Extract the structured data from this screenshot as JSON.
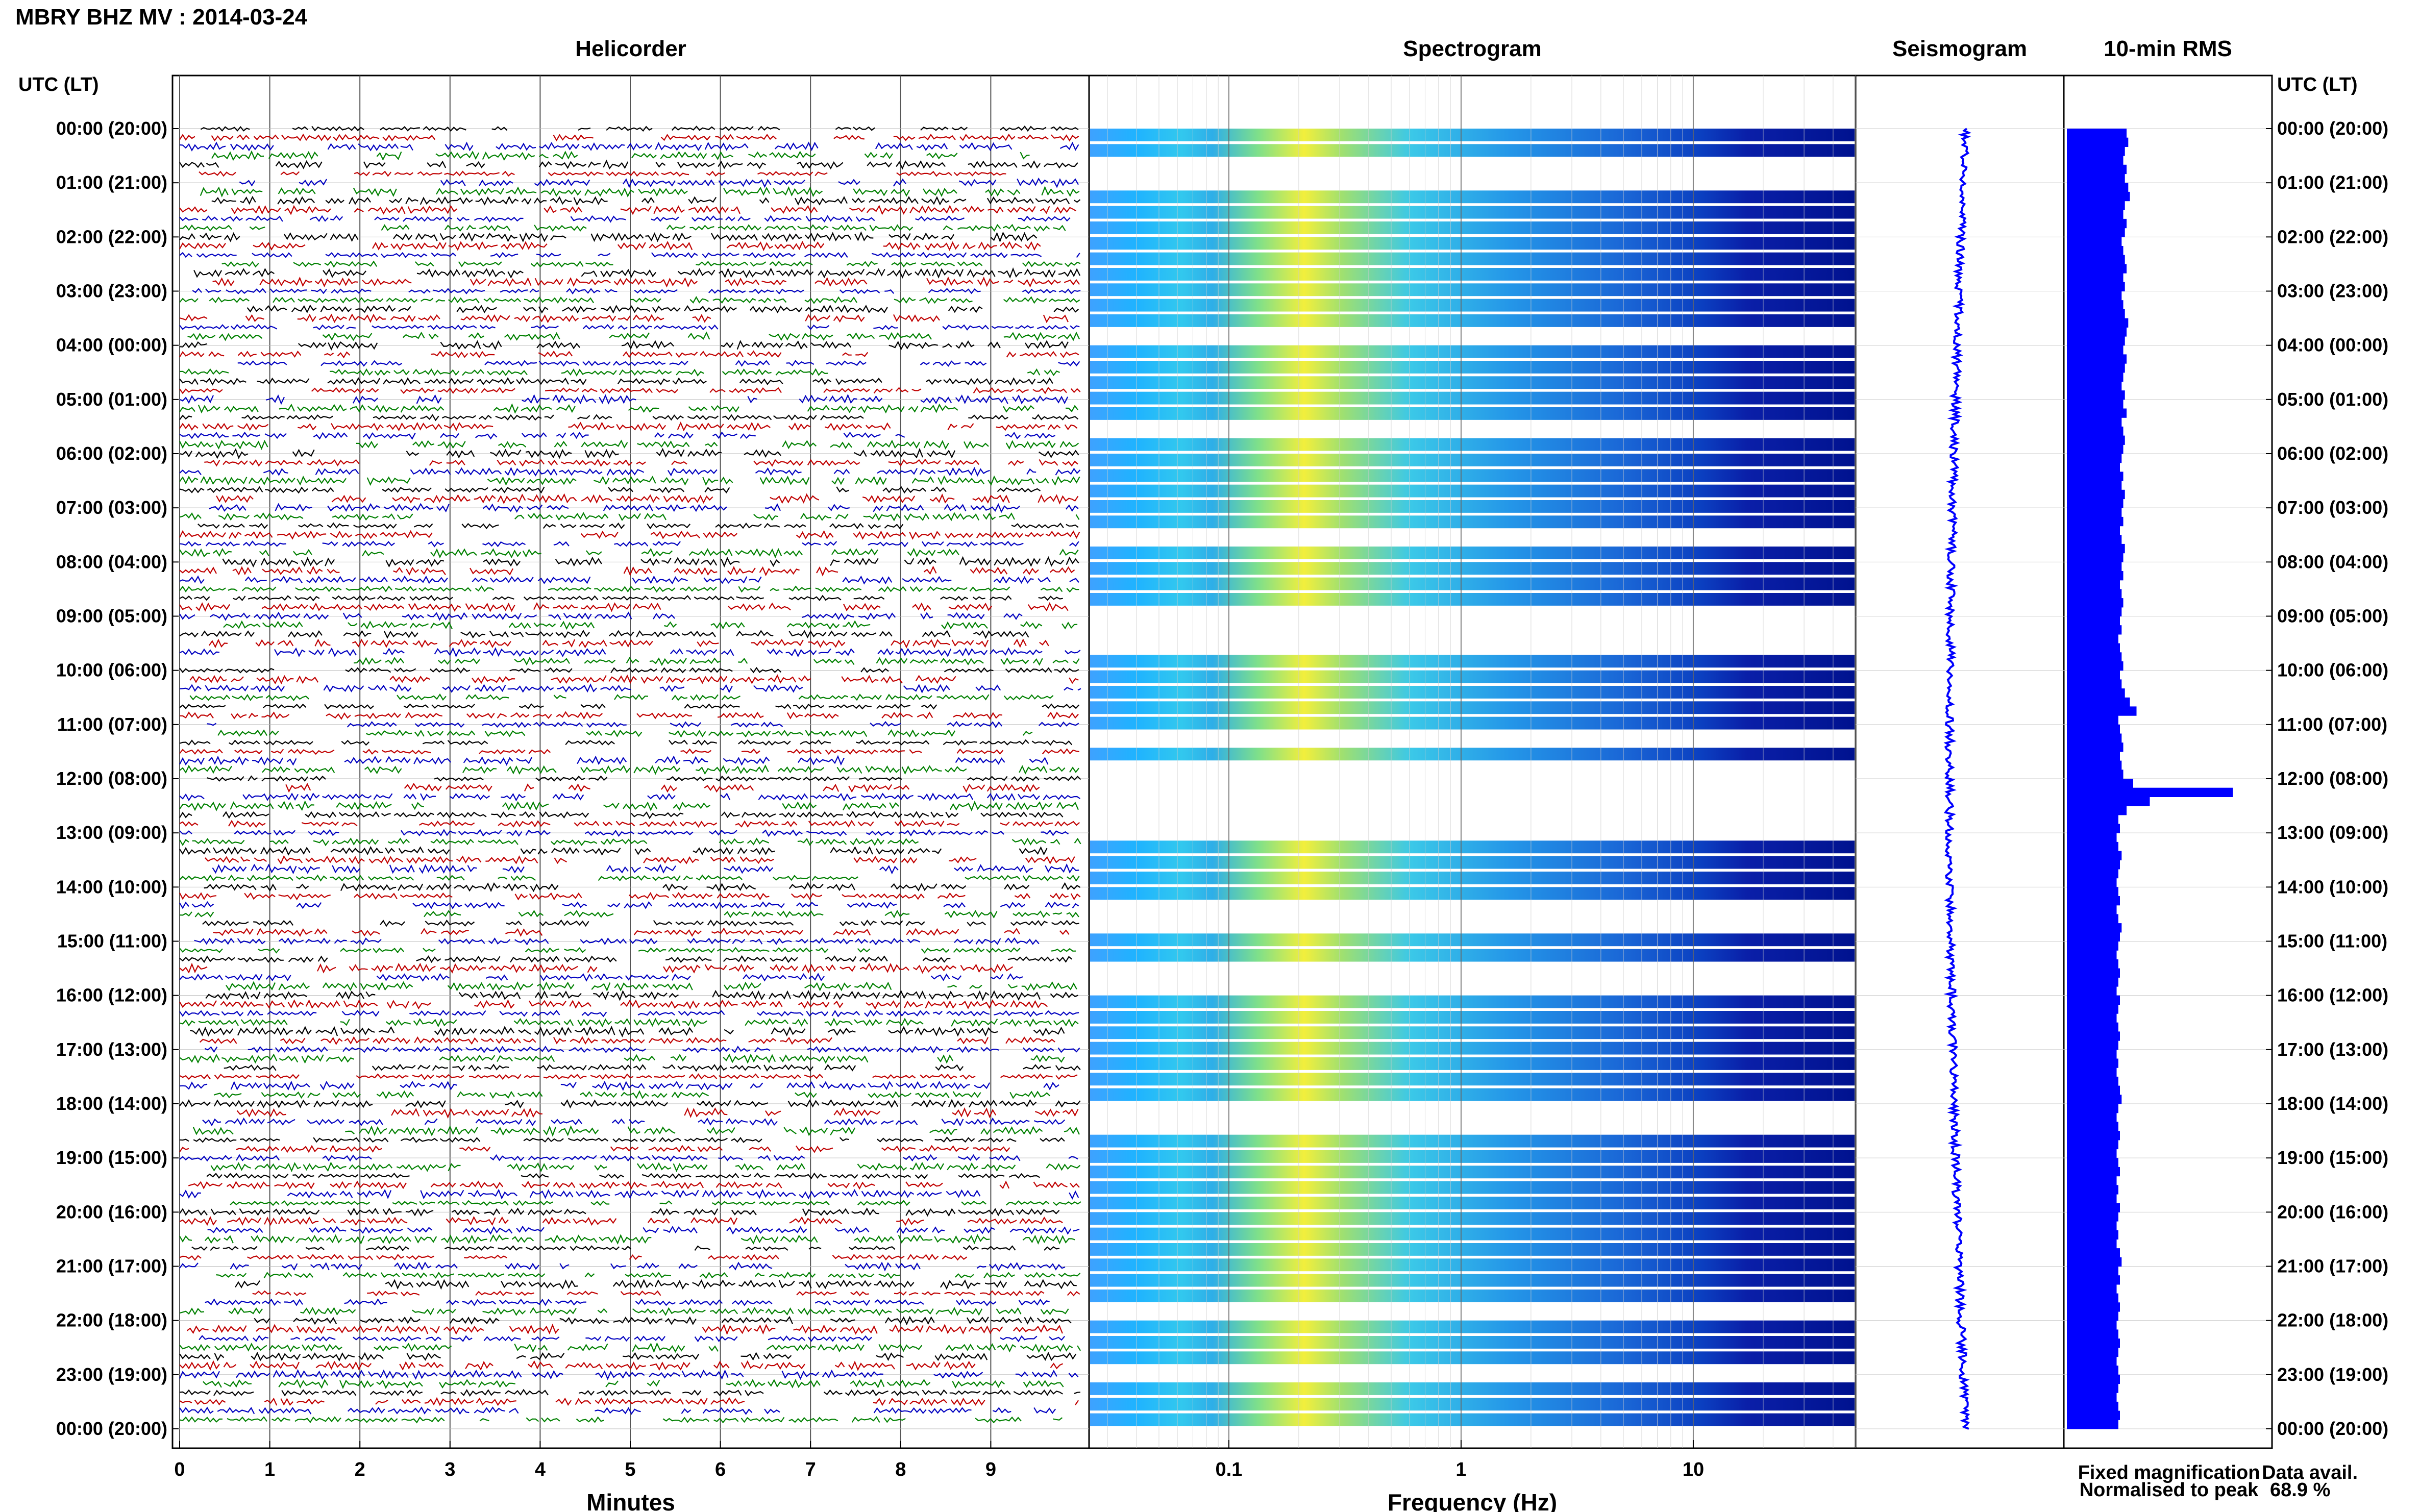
{
  "title": "MBRY BHZ MV : 2014-03-24",
  "panels": {
    "helicorder": "Helicorder",
    "spectrogram": "Spectrogram",
    "seismogram": "Seismogram",
    "rms": "10-min RMS"
  },
  "axis": {
    "time_header": "UTC (LT)",
    "minutes_label": "Minutes",
    "freq_label": "Frequency (Hz)"
  },
  "legend": {
    "fixed": "Fixed magnification",
    "normalised": "Normalised to peak",
    "fixed_color": "#0000ff",
    "normalised_color": "#ff0000"
  },
  "availability": {
    "label": "Data avail.",
    "value": "68.9 %"
  },
  "colors": {
    "trace_cycle": [
      "#000000",
      "#c00000",
      "#0000c0",
      "#008000"
    ],
    "seismogram": "#0000ff",
    "rms": "#0000ff"
  },
  "chart_data": [
    {
      "type": "line",
      "name": "helicorder",
      "xlabel": "Minutes",
      "xlim": [
        0,
        10
      ],
      "xticks": [
        "0",
        "1",
        "2",
        "3",
        "4",
        "5",
        "6",
        "7",
        "8",
        "9"
      ],
      "ylabel": "UTC (LT)",
      "ylim": [
        "00:00 (20:00)",
        "00:00 (20:00)"
      ],
      "yticks": [
        "00:00 (20:00)",
        "01:00 (21:00)",
        "02:00 (22:00)",
        "03:00 (23:00)",
        "04:00 (00:00)",
        "05:00 (01:00)",
        "06:00 (02:00)",
        "07:00 (03:00)",
        "08:00 (04:00)",
        "09:00 (05:00)",
        "10:00 (06:00)",
        "11:00 (07:00)",
        "12:00 (08:00)",
        "13:00 (09:00)",
        "14:00 (10:00)",
        "15:00 (11:00)",
        "16:00 (12:00)",
        "17:00 (13:00)",
        "18:00 (14:00)",
        "19:00 (15:00)",
        "20:00 (16:00)",
        "21:00 (17:00)",
        "22:00 (18:00)",
        "23:00 (19:00)",
        "00:00 (20:00)"
      ],
      "grid": true
    },
    {
      "type": "heatmap",
      "name": "spectrogram",
      "xlabel": "Frequency (Hz)",
      "xscale": "log",
      "xlim": [
        0.025,
        50
      ],
      "xticks": [
        "0.1",
        "1",
        "10"
      ],
      "grid": true,
      "rows_with_data": [
        0,
        1,
        4,
        5,
        6,
        7,
        8,
        9,
        10,
        11,
        12,
        14,
        15,
        16,
        17,
        18,
        20,
        21,
        22,
        23,
        24,
        25,
        27,
        28,
        29,
        30,
        34,
        35,
        36,
        37,
        38,
        40,
        46,
        47,
        48,
        49,
        52,
        53,
        56,
        57,
        58,
        59,
        60,
        61,
        62,
        65,
        66,
        67,
        68,
        69,
        70,
        71,
        72,
        73,
        74,
        75,
        77,
        78,
        79,
        81,
        82,
        83
      ]
    },
    {
      "type": "line",
      "name": "seismogram",
      "grid": true
    },
    {
      "type": "bar",
      "name": "10-min RMS",
      "orientation": "horizontal",
      "xlim": [
        0,
        1
      ],
      "values": [
        0.36,
        0.37,
        0.35,
        0.34,
        0.36,
        0.35,
        0.37,
        0.38,
        0.35,
        0.34,
        0.36,
        0.35,
        0.33,
        0.34,
        0.35,
        0.36,
        0.34,
        0.35,
        0.33,
        0.34,
        0.35,
        0.37,
        0.36,
        0.35,
        0.34,
        0.36,
        0.35,
        0.34,
        0.33,
        0.35,
        0.34,
        0.36,
        0.33,
        0.34,
        0.35,
        0.34,
        0.33,
        0.32,
        0.34,
        0.33,
        0.35,
        0.34,
        0.33,
        0.34,
        0.32,
        0.33,
        0.35,
        0.34,
        0.33,
        0.34,
        0.32,
        0.33,
        0.34,
        0.33,
        0.32,
        0.33,
        0.31,
        0.32,
        0.33,
        0.34,
        0.32,
        0.33,
        0.35,
        0.38,
        0.42,
        0.31,
        0.32,
        0.33,
        0.34,
        0.32,
        0.33,
        0.34,
        0.4,
        1.0,
        0.5,
        0.36,
        0.31,
        0.32,
        0.3,
        0.31,
        0.33,
        0.32,
        0.31,
        0.3,
        0.31,
        0.32,
        0.3,
        0.31,
        0.33,
        0.32,
        0.31,
        0.3,
        0.31,
        0.32,
        0.31,
        0.3,
        0.32,
        0.31,
        0.3,
        0.31,
        0.32,
        0.31,
        0.3,
        0.31,
        0.3,
        0.31,
        0.32,
        0.33,
        0.31,
        0.3,
        0.31,
        0.32,
        0.31,
        0.3,
        0.31,
        0.32,
        0.3,
        0.31,
        0.3,
        0.32,
        0.31,
        0.3,
        0.31,
        0.3,
        0.32,
        0.33,
        0.31,
        0.32,
        0.3,
        0.31,
        0.32,
        0.31,
        0.3,
        0.31,
        0.32,
        0.31,
        0.3,
        0.31,
        0.32,
        0.31,
        0.3,
        0.31,
        0.32,
        0.31
      ]
    }
  ]
}
